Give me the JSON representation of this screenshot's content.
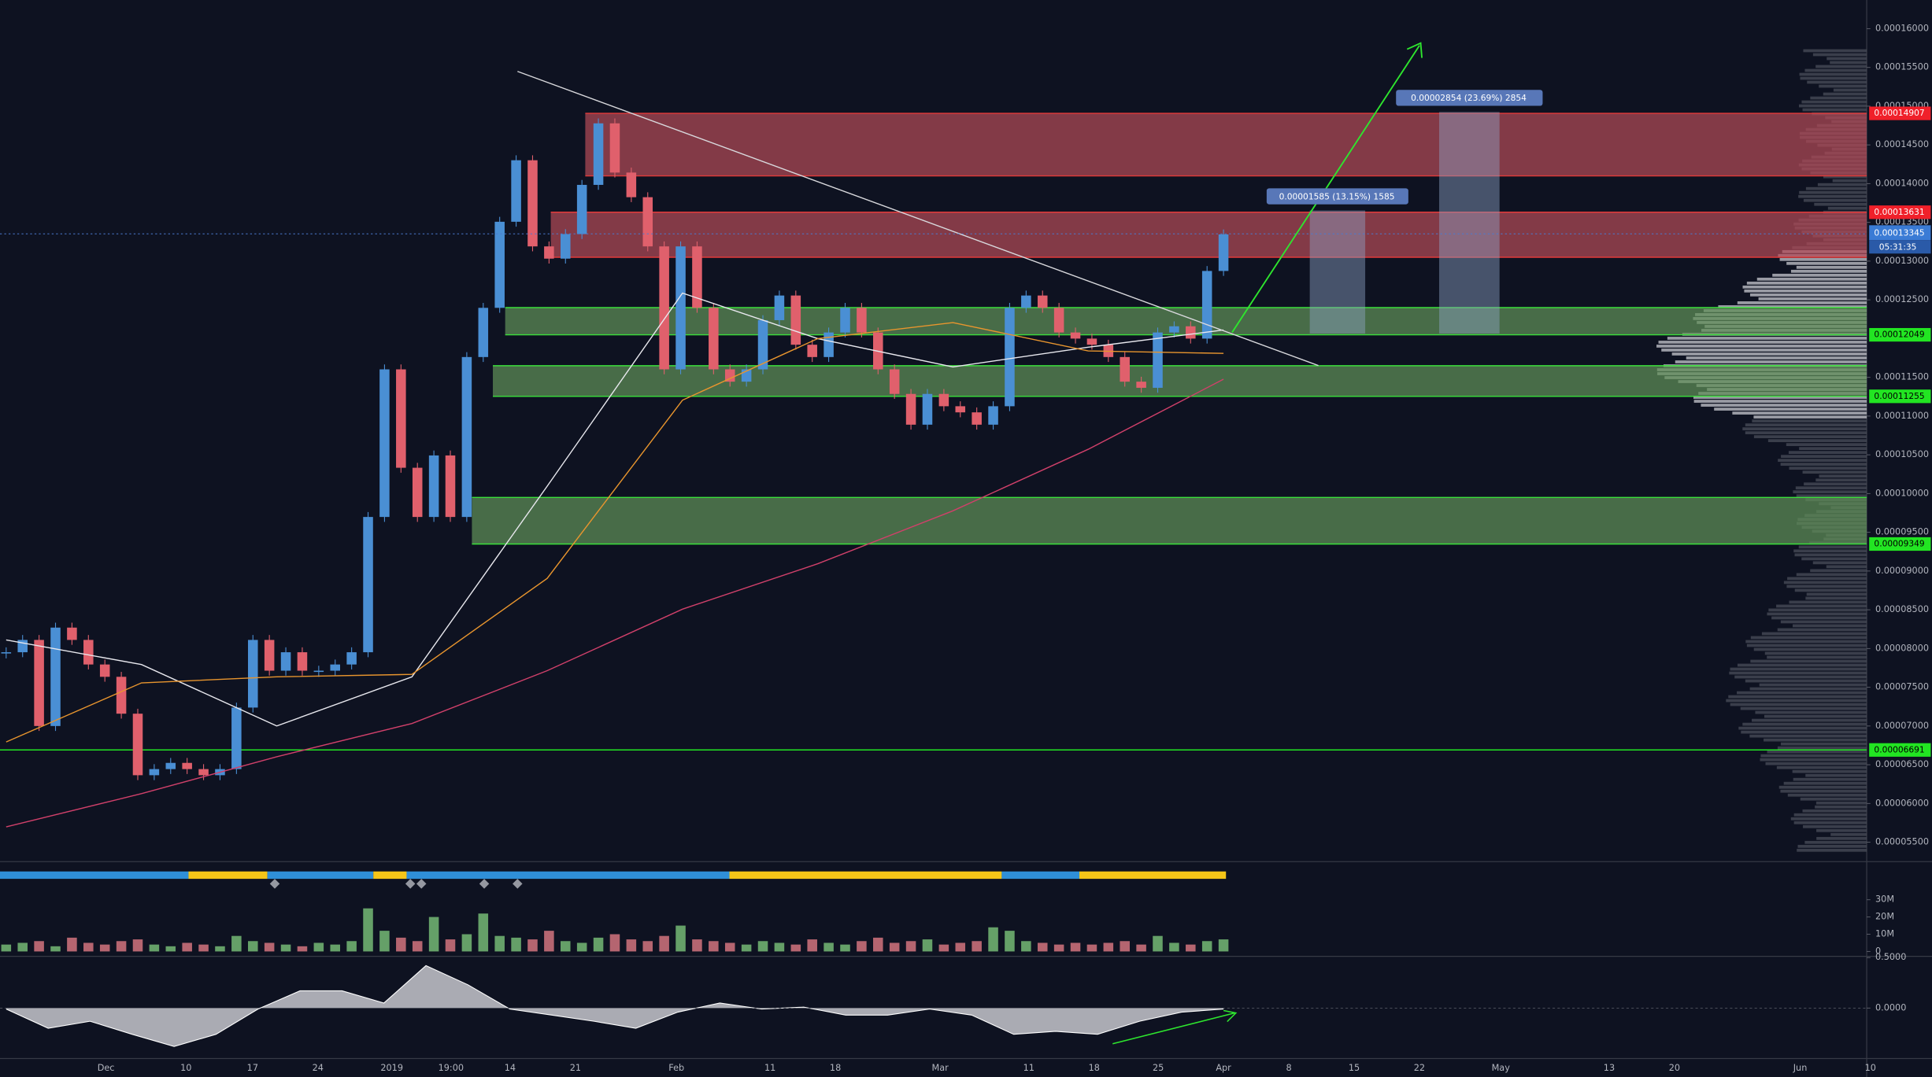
{
  "chart_data": [
    {
      "type": "candlestick",
      "close": [
        7.952e-05,
        8.111e-05,
        7e-05,
        8.27e-05,
        8.111e-05,
        7.794e-05,
        7.635e-05,
        7.159e-05,
        6.365e-05,
        6.444e-05,
        6.524e-05,
        6.444e-05,
        6.365e-05,
        6.444e-05,
        7.238e-05,
        8.111e-05,
        7.714e-05,
        7.952e-05,
        7.714e-05,
        7.714e-05,
        7.794e-05,
        7.952e-05,
        9.698e-05,
        0.00011603,
        0.00010333,
        9.698e-05,
        0.00010492,
        9.698e-05,
        0.00011762,
        0.00012397,
        0.00013508,
        0.00014302,
        0.0001319,
        0.00013032,
        0.00013349,
        0.00013984,
        0.00014778,
        0.00014143,
        0.00013825,
        0.0001319,
        0.00011603,
        0.0001319,
        0.00012397,
        0.00011603,
        0.00011444,
        0.00011603,
        0.00012238,
        0.00012556,
        0.00011921,
        0.00011762,
        0.00012079,
        0.00012397,
        0.00012079,
        0.00011603,
        0.00011286,
        0.00010889,
        0.00011286,
        0.00011127,
        0.00011048,
        0.00010889,
        0.00011127,
        0.00012397,
        0.00012556,
        0.00012397,
        0.00012079,
        0.00012,
        0.00011921,
        0.00011762,
        0.00011444,
        0.00011365,
        0.00012079,
        0.00012159,
        0.00012,
        0.00012873,
        0.00013345
      ],
      "up_color": "#4a8fd4",
      "down_color": "#e0606c",
      "lines": [
        {
          "color": "#e8e8ee",
          "values": [
            8.111e-05,
            7.794e-05,
            7e-05,
            7.635e-05,
            0.00010095,
            0.00012587,
            0.00012,
            0.00011635,
            0.00011889,
            0.00012111
          ]
        },
        {
          "color": "#e8952e",
          "values": [
            6.794e-05,
            7.556e-05,
            7.635e-05,
            7.667e-05,
            8.905e-05,
            0.00011206,
            0.00012,
            0.00012206,
            0.00011841,
            0.0001181
          ]
        },
        {
          "color": "#d0406a",
          "values": [
            5.698e-05,
            6.127e-05,
            6.603e-05,
            7.032e-05,
            7.714e-05,
            8.508e-05,
            9.095e-05,
            9.778e-05,
            0.00010571,
            0.00011476
          ]
        }
      ],
      "ylim": [
        5.25e-05,
        0.0001637
      ],
      "yticks": [
        {
          "value": 5.5e-05,
          "label": "0.00005500"
        },
        {
          "value": 6e-05,
          "label": "0.00006000"
        },
        {
          "value": 6.5e-05,
          "label": "0.00006500"
        },
        {
          "value": 7e-05,
          "label": "0.00007000"
        },
        {
          "value": 7.5e-05,
          "label": "0.00007500"
        },
        {
          "value": 8e-05,
          "label": "0.00008000"
        },
        {
          "value": 8.5e-05,
          "label": "0.00008500"
        },
        {
          "value": 9e-05,
          "label": "0.00009000"
        },
        {
          "value": 9.5e-05,
          "label": "0.00009500"
        },
        {
          "value": 0.0001,
          "label": "0.00010000"
        },
        {
          "value": 0.000105,
          "label": "0.00010500"
        },
        {
          "value": 0.00011,
          "label": "0.00011000"
        },
        {
          "value": 0.000115,
          "label": "0.00011500"
        },
        {
          "value": 0.000125,
          "label": "0.00012500"
        },
        {
          "value": 0.00013,
          "label": "0.00013000"
        },
        {
          "value": 0.000135,
          "label": "0.00013500"
        },
        {
          "value": 0.00014,
          "label": "0.00014000"
        },
        {
          "value": 0.000145,
          "label": "0.00014500"
        },
        {
          "value": 0.00015,
          "label": "0.00015000"
        },
        {
          "value": 0.000155,
          "label": "0.00015500"
        },
        {
          "value": 0.00016,
          "label": "0.00016000"
        }
      ],
      "zones": [
        {
          "top": 0.00014907,
          "bottom": 0.000141,
          "color": "#b24a56"
        },
        {
          "top": 0.00013631,
          "bottom": 0.0001305,
          "color": "#b24a56"
        },
        {
          "top": 0.000124,
          "bottom": 0.00012049,
          "color": "#5f8f58"
        },
        {
          "top": 0.0001165,
          "bottom": 0.00011255,
          "color": "#5f8f58"
        },
        {
          "top": 9.95e-05,
          "bottom": 9.349e-05,
          "color": "#5f8f58"
        }
      ],
      "levels": [
        {
          "value": 0.00014907,
          "color": "#f0202a"
        },
        {
          "value": 0.00013631,
          "color": "#f0202a"
        },
        {
          "value": 0.00012049,
          "color": "#22e522"
        },
        {
          "value": 0.00011255,
          "color": "#22e522"
        },
        {
          "value": 9.349e-05,
          "color": "#22e522"
        },
        {
          "value": 6.691e-05,
          "color": "#22e522"
        }
      ],
      "last_price": 0.00013345,
      "countdown": "05:31:35",
      "measures": [
        "0.00001585 (13.15%) 1585",
        "0.00002854 (23.69%) 2854"
      ],
      "x_labels": [
        "Dec",
        "10",
        "17",
        "24",
        "2019",
        "19:00",
        "14",
        "21",
        "Feb",
        "11",
        "18",
        "Mar",
        "11",
        "18",
        "25",
        "Apr",
        "8",
        "15",
        "22",
        "May",
        "13",
        "20",
        "Jun",
        "10"
      ]
    },
    {
      "type": "bar",
      "values": [
        4000000,
        5000000,
        6000000,
        3000000,
        8000000,
        5000000,
        4000000,
        6000000,
        7000000,
        4000000,
        3000000,
        5000000,
        4000000,
        3000000,
        9000000,
        6000000,
        5000000,
        4000000,
        3000000,
        5000000,
        4000000,
        6000000,
        25000000,
        12000000,
        8000000,
        6000000,
        20000000,
        7000000,
        10000000,
        22000000,
        9000000,
        8000000,
        7000000,
        12000000,
        6000000,
        5000000,
        8000000,
        10000000,
        7000000,
        6000000,
        9000000,
        15000000,
        7000000,
        6000000,
        5000000,
        4000000,
        6000000,
        5000000,
        4000000,
        7000000,
        5000000,
        4000000,
        6000000,
        8000000,
        5000000,
        6000000,
        7000000,
        4000000,
        5000000,
        6000000,
        14000000,
        12000000,
        6000000,
        5000000,
        4000000,
        5000000,
        4000000,
        5000000,
        6000000,
        4000000,
        9000000,
        5000000,
        4000000,
        6000000,
        7000000
      ],
      "ylim": [
        -2860000,
        52140000
      ],
      "yticks": [
        0,
        {
          "value": 10000000,
          "label": "10M"
        },
        {
          "value": 20000000,
          "label": "20M"
        },
        {
          "value": 30000000,
          "label": "30M"
        }
      ]
    },
    {
      "type": "area",
      "values": [
        -0.01,
        -0.2,
        -0.13,
        -0.26,
        -0.38,
        -0.26,
        -0.01,
        0.17,
        0.17,
        0.05,
        0.42,
        0.23,
        -0.01,
        -0.07,
        -0.13,
        -0.2,
        -0.04,
        0.05,
        -0.01,
        0.01,
        -0.07,
        -0.07,
        -0.01,
        -0.07,
        -0.26,
        -0.23,
        -0.26,
        -0.13,
        -0.04,
        -0.01
      ],
      "ylim": [
        -0.5,
        0.512
      ],
      "yticks": [
        {
          "value": 0,
          "label": "0.0000"
        },
        {
          "value": 0.5,
          "label": "0.5000"
        }
      ]
    }
  ]
}
